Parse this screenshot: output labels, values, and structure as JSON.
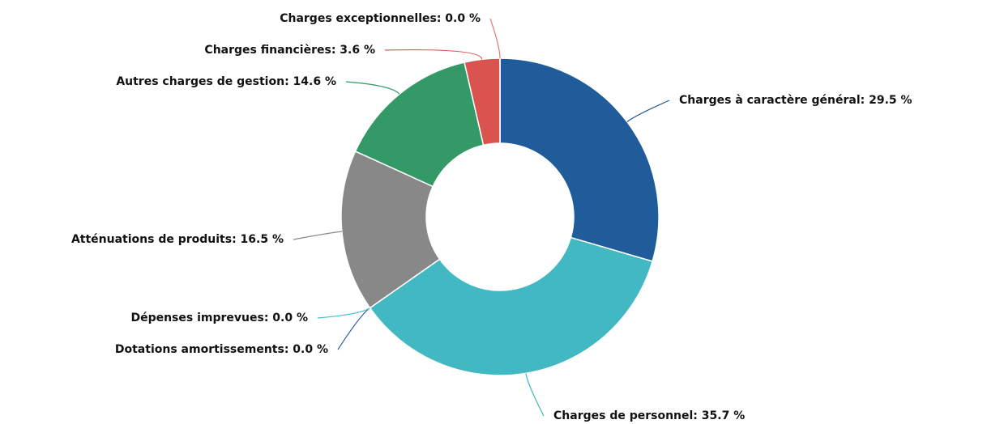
{
  "chart_data": {
    "type": "donut",
    "values": [
      29.5,
      35.7,
      0.0,
      0.0,
      16.5,
      14.6,
      3.6,
      0.0
    ],
    "value_labels": [
      "Charges à caractère général: 29.5 %",
      "Charges de personnel: 35.7 %",
      "Dotations amortissements: 0.0 %",
      "Dépenses imprevues: 0.0 %",
      "Atténuations de produits: 16.5 %",
      "Autres charges de gestion: 14.6 %",
      "Charges financières: 3.6 %",
      "Charges exceptionnelles: 0.0 %"
    ],
    "colors": [
      "#1f5c99",
      "#41b8c2",
      "#2a5fa8",
      "#41c2c8",
      "#888888",
      "#339966",
      "#d9534f",
      "#e0787a"
    ]
  }
}
